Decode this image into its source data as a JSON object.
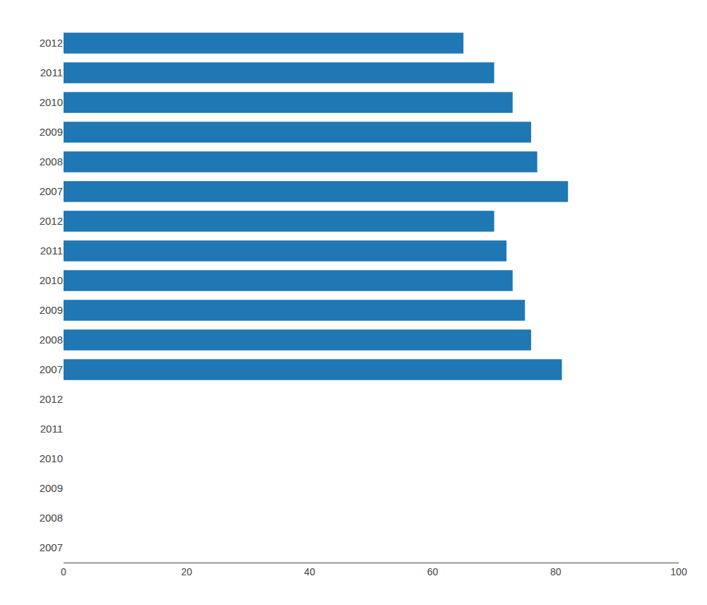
{
  "chart_data": {
    "type": "bar",
    "orientation": "horizontal",
    "categories": [
      "2012",
      "2011",
      "2010",
      "2009",
      "2008",
      "2007",
      "2012",
      "2011",
      "2010",
      "2009",
      "2008",
      "2007",
      "2012",
      "2011",
      "2010",
      "2009",
      "2008",
      "2007"
    ],
    "values": [
      65,
      70,
      73,
      76,
      77,
      82,
      70,
      72,
      73,
      75,
      76,
      81,
      0,
      0,
      0,
      0,
      0,
      0
    ],
    "xlim": [
      0,
      100
    ],
    "xticks": [
      0,
      20,
      40,
      60,
      80,
      100
    ],
    "grid": false
  }
}
